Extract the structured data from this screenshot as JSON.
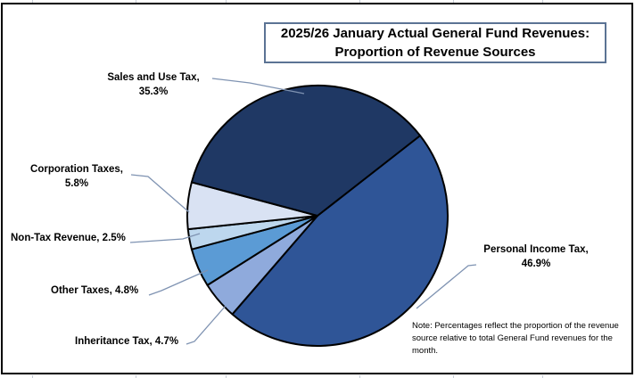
{
  "title": {
    "line1": "2025/26 January Actual General Fund Revenues:",
    "line2": "Proportion of Revenue Sources"
  },
  "labels": {
    "sales": {
      "line1": "Sales and Use Tax,",
      "line2": "35.3%"
    },
    "corporation": {
      "line1": "Corporation Taxes,",
      "line2": "5.8%"
    },
    "nontax": {
      "text": "Non-Tax Revenue, 2.5%"
    },
    "other": {
      "text": "Other Taxes, 4.8%"
    },
    "inheritance": {
      "text": "Inheritance Tax, 4.7%"
    },
    "personal": {
      "line1": "Personal Income Tax,",
      "line2": "46.9%"
    }
  },
  "note": {
    "text": "Note: Percentages reflect the proportion of the revenue source relative to total General Fund revenues for the month."
  },
  "chart_data": {
    "type": "pie",
    "title": "2025/26 January Actual General Fund Revenues: Proportion of Revenue Sources",
    "unit": "percent",
    "direction": "clockwise",
    "start_angle_clock_deg": 52,
    "slices": [
      {
        "label": "Personal Income Tax",
        "value": 46.9,
        "color": "#2F5597"
      },
      {
        "label": "Inheritance Tax",
        "value": 4.7,
        "color": "#8FAADC"
      },
      {
        "label": "Other Taxes",
        "value": 4.8,
        "color": "#5B9BD5"
      },
      {
        "label": "Non-Tax Revenue",
        "value": 2.5,
        "color": "#BDD7EE"
      },
      {
        "label": "Corporation Taxes",
        "value": 5.8,
        "color": "#D9E2F3"
      },
      {
        "label": "Sales and Use Tax",
        "value": 35.3,
        "color": "#1F3864"
      }
    ],
    "outline_color": "#000000",
    "leader_line_color": "#7F93B2",
    "legend": "none",
    "data_labels": "outside with leader lines"
  }
}
